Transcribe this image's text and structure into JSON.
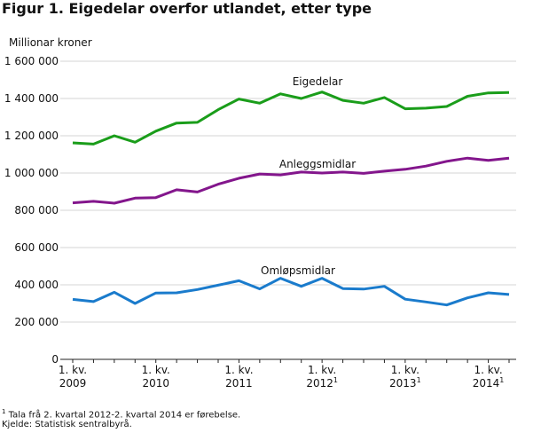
{
  "title": "Figur 1. Eigedelar overfor utlandet, etter type",
  "footnotes": {
    "note_mark": "1",
    "note_text": " Tala frå 2. kvartal 2012-2. kvartal 2014 er førebelse.",
    "source": "Kjelde: Statistisk sentralbyrå."
  },
  "colors": {
    "eigedelar": "#1a9d1a",
    "anleggsmidlar": "#83168c",
    "omlopsmidlar": "#1a7bcc",
    "grid": "#d4d4d4",
    "axis": "#222222"
  },
  "chart_data": {
    "type": "line",
    "title": "Figur 1. Eigedelar overfor utlandet, etter type",
    "ylabel": "Millionar kroner",
    "xlabel": "",
    "ylim": [
      0,
      1600000
    ],
    "yticks": [
      0,
      200000,
      400000,
      600000,
      800000,
      1000000,
      1200000,
      1400000,
      1600000
    ],
    "ytick_labels": [
      "0",
      "200 000",
      "400 000",
      "600 000",
      "800 000",
      "1 000 000",
      "1 200 000",
      "1 400 000",
      "1 600 000"
    ],
    "x": [
      "2009K1",
      "2009K2",
      "2009K3",
      "2009K4",
      "2010K1",
      "2010K2",
      "2010K3",
      "2010K4",
      "2011K1",
      "2011K2",
      "2011K3",
      "2011K4",
      "2012K1",
      "2012K2",
      "2012K3",
      "2012K4",
      "2013K1",
      "2013K2",
      "2013K3",
      "2013K4",
      "2014K1",
      "2014K2"
    ],
    "xtick_labels": [
      {
        "index": 0,
        "line1": "1. kv.",
        "line2": "2009",
        "sup": ""
      },
      {
        "index": 4,
        "line1": "1. kv.",
        "line2": "2010",
        "sup": ""
      },
      {
        "index": 8,
        "line1": "1. kv.",
        "line2": "2011",
        "sup": ""
      },
      {
        "index": 12,
        "line1": "1. kv.",
        "line2": "2012",
        "sup": "1"
      },
      {
        "index": 16,
        "line1": "1. kv.",
        "line2": "2013",
        "sup": "1"
      },
      {
        "index": 20,
        "line1": "1. kv.",
        "line2": "2014",
        "sup": "1"
      }
    ],
    "grid": true,
    "series": [
      {
        "name": "Eigedelar",
        "color_key": "eigedelar",
        "values": [
          1162000,
          1155000,
          1200000,
          1165000,
          1225000,
          1268000,
          1272000,
          1340000,
          1397000,
          1375000,
          1425000,
          1400000,
          1435000,
          1390000,
          1375000,
          1405000,
          1345000,
          1348000,
          1357000,
          1412000,
          1430000,
          1432000
        ]
      },
      {
        "name": "Anleggsmidlar",
        "color_key": "anleggsmidlar",
        "values": [
          840000,
          848000,
          838000,
          865000,
          868000,
          910000,
          898000,
          940000,
          972000,
          995000,
          990000,
          1005000,
          1000000,
          1005000,
          998000,
          1010000,
          1020000,
          1037000,
          1063000,
          1080000,
          1068000,
          1080000
        ]
      },
      {
        "name": "Omløpsmidlar",
        "color_key": "omlopsmidlar",
        "values": [
          322000,
          310000,
          360000,
          300000,
          356000,
          357000,
          375000,
          398000,
          422000,
          378000,
          435000,
          392000,
          435000,
          380000,
          377000,
          392000,
          323000,
          308000,
          292000,
          330000,
          357000,
          348000
        ]
      }
    ],
    "annotations": [
      {
        "text": "Eigedelar",
        "series": "Eigedelar"
      },
      {
        "text": "Anleggsmidlar",
        "series": "Anleggsmidlar"
      },
      {
        "text": "Omløpsmidlar",
        "series": "Omløpsmidlar"
      }
    ]
  }
}
